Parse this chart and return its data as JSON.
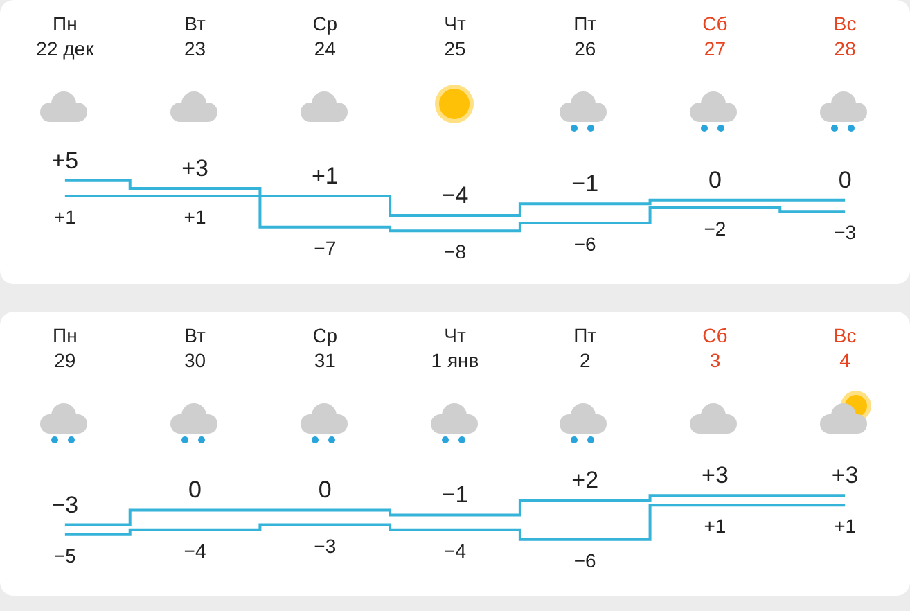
{
  "chart_data": [
    {
      "type": "step",
      "marker": "none",
      "categories": [
        "Пн 22 дек",
        "Вт 23",
        "Ср 24",
        "Чт 25",
        "Пт 26",
        "Сб 27",
        "Вс 28"
      ],
      "series": [
        {
          "color": "#36b3d9",
          "values": [
            5,
            3,
            1,
            -4,
            -1,
            0,
            0
          ],
          "value_labels": [
            "+5",
            "+3",
            "+1",
            "−4",
            "−1",
            "0",
            "0"
          ]
        },
        {
          "color": "#36b3d9",
          "values": [
            1,
            1,
            -7,
            -8,
            -6,
            -2,
            -3
          ],
          "value_labels": [
            "+1",
            "+1",
            "−7",
            "−8",
            "−6",
            "−2",
            "−3"
          ]
        }
      ]
    },
    {
      "type": "step",
      "marker": "none",
      "categories": [
        "Пн 29",
        "Вт 30",
        "Ср 31",
        "Чт 1 янв",
        "Пт 2",
        "Сб 3",
        "Вс 4"
      ],
      "series": [
        {
          "color": "#36b3d9",
          "values": [
            -3,
            0,
            0,
            -1,
            2,
            3,
            3
          ],
          "value_labels": [
            "−3",
            "0",
            "0",
            "−1",
            "+2",
            "+3",
            "+3"
          ]
        },
        {
          "color": "#36b3d9",
          "values": [
            -5,
            -4,
            -3,
            -4,
            -6,
            1,
            1
          ],
          "value_labels": [
            "−5",
            "−4",
            "−3",
            "−4",
            "−6",
            "+1",
            "+1"
          ]
        }
      ]
    }
  ]
}
